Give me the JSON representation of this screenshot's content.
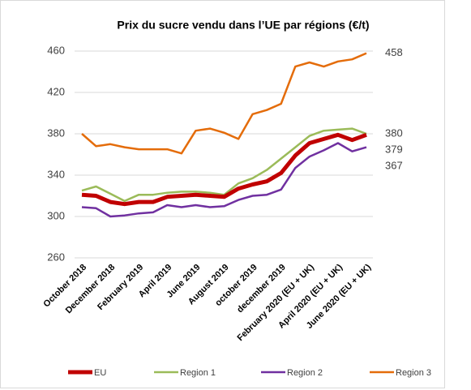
{
  "chart_data": {
    "type": "line",
    "title": "Prix du sucre vendu dans l’UE par régions (€/t)",
    "categories": [
      "October 2018",
      null,
      "December 2018",
      null,
      "February 2019",
      null,
      "April 2019",
      null,
      "June 2019",
      null,
      "August 2019",
      null,
      "october 2019",
      null,
      "december 2019",
      null,
      "February 2020 (EU + UK)",
      null,
      "April 2020 (EU + UK)",
      null,
      "June 2020 (EU + UK)"
    ],
    "series": [
      {
        "name": "EU",
        "color": "#c00000",
        "values": [
          321,
          320,
          314,
          312,
          314,
          314,
          319,
          320,
          321,
          320,
          319,
          327,
          331,
          334,
          342,
          359,
          371,
          375,
          379,
          374,
          379
        ]
      },
      {
        "name": "Region 1",
        "color": "#9bbb59",
        "values": [
          325,
          329,
          322,
          315,
          321,
          321,
          323,
          324,
          324,
          323,
          321,
          332,
          337,
          345,
          356,
          367,
          378,
          383,
          384,
          385,
          380
        ]
      },
      {
        "name": "Region 2",
        "color": "#7030a0",
        "values": [
          309,
          308,
          300,
          301,
          303,
          304,
          311,
          309,
          311,
          309,
          310,
          316,
          320,
          321,
          326,
          347,
          358,
          364,
          371,
          363,
          367
        ]
      },
      {
        "name": "Region 3",
        "color": "#e46c0a",
        "values": [
          380,
          368,
          370,
          367,
          365,
          365,
          365,
          361,
          383,
          385,
          381,
          375,
          399,
          403,
          409,
          445,
          449,
          445,
          450,
          452,
          458
        ]
      }
    ],
    "ylim": [
      260,
      460
    ],
    "yticks": [
      260,
      300,
      340,
      380,
      420,
      460
    ],
    "grid": true,
    "legend": "bottom"
  }
}
